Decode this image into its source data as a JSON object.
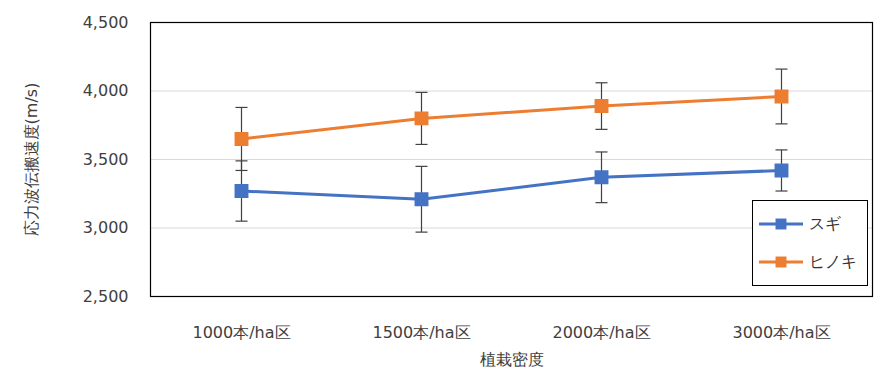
{
  "chart_data": {
    "type": "line",
    "x_label": "植栽密度",
    "y_label": "応力波伝搬速度(m/s)",
    "categories": [
      "1000本/ha区",
      "1500本/ha区",
      "2000本/ha区",
      "3000本/ha区"
    ],
    "series": [
      {
        "name": "スギ",
        "color": "#4472c4",
        "marker": "square",
        "values": [
          3270,
          3210,
          3370,
          3420
        ],
        "errors": [
          220,
          240,
          185,
          150
        ]
      },
      {
        "name": "ヒノキ",
        "color": "#ed7d31",
        "marker": "square",
        "values": [
          3650,
          3800,
          3890,
          3960
        ],
        "errors": [
          230,
          190,
          170,
          200
        ]
      }
    ],
    "ylim": [
      2500,
      4500
    ],
    "yticks": [
      2500,
      3000,
      3500,
      4000,
      4500
    ],
    "grid": true,
    "legend": "lower right"
  }
}
